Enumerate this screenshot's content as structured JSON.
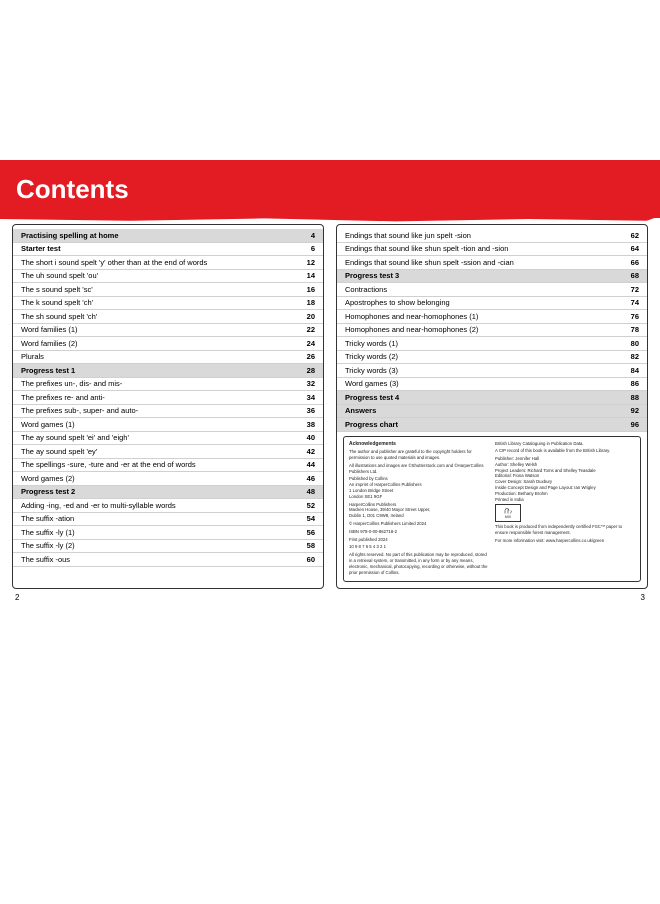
{
  "title": "Contents",
  "left_page_number": "2",
  "right_page_number": "3",
  "left_toc": [
    {
      "label": "Practising spelling at home",
      "page": "4",
      "bold": true,
      "shaded": true
    },
    {
      "label": "Starter test",
      "page": "6",
      "bold": true
    },
    {
      "label": "The short i sound spelt 'y' other than at the end of words",
      "page": "12",
      "bold": false
    },
    {
      "label": "The uh sound spelt 'ou'",
      "page": "14",
      "bold": false
    },
    {
      "label": "The s sound spelt 'sc'",
      "page": "16",
      "bold": false
    },
    {
      "label": "The k sound spelt 'ch'",
      "page": "18",
      "bold": false
    },
    {
      "label": "The sh sound spelt 'ch'",
      "page": "20",
      "bold": false
    },
    {
      "label": "Word families (1)",
      "page": "22",
      "bold": false
    },
    {
      "label": "Word families (2)",
      "page": "24",
      "bold": false
    },
    {
      "label": "Plurals",
      "page": "26",
      "bold": false
    },
    {
      "label": "Progress test 1",
      "page": "28",
      "bold": true,
      "shaded": true
    },
    {
      "label": "The prefixes un-, dis- and mis-",
      "page": "32",
      "bold": false
    },
    {
      "label": "The prefixes re- and anti-",
      "page": "34",
      "bold": false
    },
    {
      "label": "The prefixes sub-, super- and auto-",
      "page": "36",
      "bold": false
    },
    {
      "label": "Word games (1)",
      "page": "38",
      "bold": false
    },
    {
      "label": "The ay sound spelt 'ei' and 'eigh'",
      "page": "40",
      "bold": false
    },
    {
      "label": "The ay sound spelt 'ey'",
      "page": "42",
      "bold": false
    },
    {
      "label": "The spellings -sure, -ture and -er at the end of words",
      "page": "44",
      "bold": false
    },
    {
      "label": "Word games (2)",
      "page": "46",
      "bold": false
    },
    {
      "label": "Progress test 2",
      "page": "48",
      "bold": true,
      "shaded": true
    },
    {
      "label": "Adding -ing, -ed and -er to multi-syllable words",
      "page": "52",
      "bold": false
    },
    {
      "label": "The suffix -ation",
      "page": "54",
      "bold": false
    },
    {
      "label": "The suffix -ly (1)",
      "page": "56",
      "bold": false
    },
    {
      "label": "The suffix -ly (2)",
      "page": "58",
      "bold": false
    },
    {
      "label": "The suffix -ous",
      "page": "60",
      "bold": false
    }
  ],
  "right_toc": [
    {
      "label": "Endings that sound like jun spelt -sion",
      "page": "62",
      "bold": false
    },
    {
      "label": "Endings that sound like shun spelt -tion and -sion",
      "page": "64",
      "bold": false
    },
    {
      "label": "Endings that sound like shun spelt -ssion and -cian",
      "page": "66",
      "bold": false
    },
    {
      "label": "Progress test 3",
      "page": "68",
      "bold": true,
      "shaded": true
    },
    {
      "label": "Contractions",
      "page": "72",
      "bold": false
    },
    {
      "label": "Apostrophes to show belonging",
      "page": "74",
      "bold": false
    },
    {
      "label": "Homophones and near-homophones (1)",
      "page": "76",
      "bold": false
    },
    {
      "label": "Homophones and near-homophones (2)",
      "page": "78",
      "bold": false
    },
    {
      "label": "Tricky words (1)",
      "page": "80",
      "bold": false
    },
    {
      "label": "Tricky words (2)",
      "page": "82",
      "bold": false
    },
    {
      "label": "Tricky words (3)",
      "page": "84",
      "bold": false
    },
    {
      "label": "Word games (3)",
      "page": "86",
      "bold": false
    },
    {
      "label": "Progress test 4",
      "page": "88",
      "bold": true,
      "shaded": true
    },
    {
      "label": "Answers",
      "page": "92",
      "bold": true,
      "shaded": true
    },
    {
      "label": "Progress chart",
      "page": "96",
      "bold": true,
      "shaded": true
    }
  ],
  "ack": {
    "title": "Acknowledgements",
    "col1": [
      "The author and publisher are grateful to the copyright holders for permission to use quoted materials and images.",
      "All illustrations and images are ©Shutterstock.com and ©HarperCollins Publishers Ltd.",
      "Published by Collins\nAn imprint of HarperCollins Publishers\n1 London Bridge Street\nLondon SE1 9GF",
      "HarperCollins Publishers\nMacken House, 39/40 Mayor Street Upper,\nDublin 1, D01 C9W8, Ireland",
      "© HarperCollins Publishers Limited 2024",
      "ISBN 978-0-00-862718-2",
      "First published 2024",
      "10 9 8 7 6 5 4 3 2 1",
      "All rights reserved. No part of this publication may be reproduced, stored in a retrieval system, or transmitted, in any form or by any means, electronic, mechanical, photocopying, recording or otherwise, without the prior permission of Collins."
    ],
    "col2": [
      "British Library Cataloguing in Publication Data.",
      "A CIP record of this book is available from the British Library.",
      "Publisher: Jennifer Hall\nAuthor: Shelley Welsh\nProject Leaders: Richard Toms and Shelley Teasdale\nEditorial: Fiona Watson\nCover Design: Sarah Duxbury\nInside Concept Design and Page Layout: Ian Wrigley\nProduction: Bethany Brohm\nPrinted in India",
      "",
      "This book is produced from independently certified FSC™ paper to ensure responsible forest management.",
      "For more information visit: www.harpercollins.co.uk/green"
    ],
    "fsc_label": "MIX",
    "fsc_sub": "Paper | Supporting responsible forestry",
    "fsc_code": "FSC™ C007454"
  }
}
